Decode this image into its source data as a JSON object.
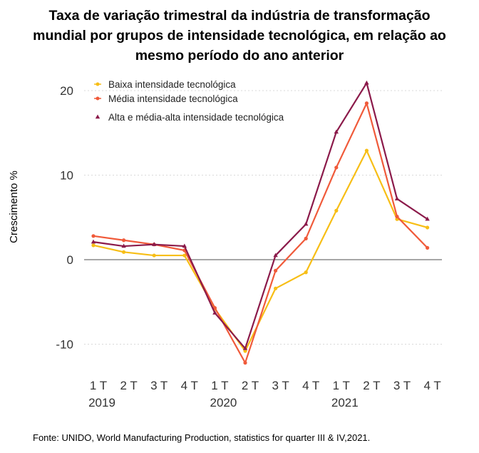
{
  "chart_data": {
    "type": "line",
    "title_lines": [
      "Taxa de variação trimestral da indústria de transformação",
      "mundial por grupos de intensidade tecnológica, em relação ao",
      "mesmo período do ano anterior"
    ],
    "ylabel": "Crescimento %",
    "xlabel": "",
    "ylim": [
      -13,
      21.5
    ],
    "yticks": [
      -10,
      0,
      10,
      20
    ],
    "grid": "horizontal-dotted",
    "legend_position": "top-left",
    "quarter_labels": [
      "1 T",
      "2 T",
      "3 T",
      "4 T",
      "1 T",
      "2 T",
      "3 T",
      "4 T",
      "1 T",
      "2 T",
      "3 T",
      "4 T"
    ],
    "year_labels": [
      {
        "label": "2019",
        "index": 0
      },
      {
        "label": "2020",
        "index": 4
      },
      {
        "label": "2021",
        "index": 8
      }
    ],
    "series": [
      {
        "name": "Baixa intensidade tecnológica",
        "color": "#F7BE16",
        "marker": "circle",
        "values": [
          1.7,
          0.9,
          0.5,
          0.5,
          -5.8,
          -10.8,
          -3.4,
          -1.5,
          5.8,
          12.9,
          4.8,
          3.8
        ]
      },
      {
        "name": "Média intensidade tecnológica",
        "color": "#F05A3A",
        "marker": "circle",
        "values": [
          2.8,
          2.3,
          1.8,
          1.1,
          -5.7,
          -12.2,
          -1.3,
          2.5,
          10.9,
          18.5,
          5.1,
          1.4
        ]
      },
      {
        "name": "Alta e média-alta intensidade tecnológica",
        "color": "#8B1A4A",
        "marker": "triangle",
        "values": [
          2.1,
          1.6,
          1.8,
          1.6,
          -6.3,
          -10.5,
          0.5,
          4.2,
          15.1,
          20.9,
          7.2,
          4.8
        ]
      }
    ]
  },
  "source": "Fonte: UNIDO, World Manufacturing Production, statistics for quarter III & IV,2021."
}
